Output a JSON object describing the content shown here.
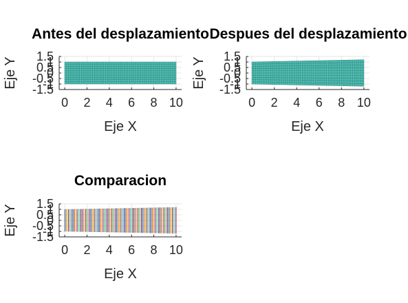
{
  "chart_data": [
    {
      "type": "mesh",
      "title": "Antes del desplazamiento",
      "xlabel": "Eje X",
      "ylabel": "Eje Y",
      "xlim": [
        -0.5,
        10.5
      ],
      "ylim": [
        -1.5,
        1.5
      ],
      "xticks": [
        "0",
        "2",
        "4",
        "6",
        "8",
        "10"
      ],
      "yticks": [
        "-1.5",
        "-1",
        "-0.5",
        "0",
        "0.5",
        "1",
        "1.5"
      ],
      "grid": true,
      "mesh": {
        "x_range": [
          0,
          10
        ],
        "y_bottom": [
          -1,
          -1
        ],
        "y_top": [
          1,
          1
        ],
        "color": "#3bb3a7"
      }
    },
    {
      "type": "mesh",
      "title": "Despues del desplazamiento",
      "xlabel": "Eje X",
      "ylabel": "Eje Y",
      "xlim": [
        -0.5,
        10.5
      ],
      "ylim": [
        -1.5,
        1.5
      ],
      "xticks": [
        "0",
        "2",
        "4",
        "6",
        "8",
        "10"
      ],
      "yticks": [
        "-1.5",
        "-1",
        "-0.5",
        "0",
        "0.5",
        "1",
        "1.5"
      ],
      "grid": true,
      "mesh": {
        "x_range": [
          0,
          10
        ],
        "y_bottom": [
          -1,
          -1.2
        ],
        "y_top": [
          1,
          1.2
        ],
        "color": "#3bb3a7"
      }
    },
    {
      "type": "line",
      "title": "Comparacion",
      "xlabel": "Eje X",
      "ylabel": "Eje Y",
      "xlim": [
        -0.5,
        10.5
      ],
      "ylim": [
        -1.5,
        1.5
      ],
      "xticks": [
        "0",
        "2",
        "4",
        "6",
        "8",
        "10"
      ],
      "yticks": [
        "-1.5",
        "-1",
        "-0.5",
        "0",
        "0.5",
        "1",
        "1.5"
      ],
      "grid": true,
      "lines": {
        "x_range": [
          0,
          10
        ],
        "y_bottom": [
          -1,
          -1.2
        ],
        "y_top": [
          1,
          1.2
        ]
      },
      "colors": [
        "#0072bd",
        "#d95319",
        "#edb120",
        "#7e2f8e",
        "#77ac30",
        "#4dbeee",
        "#a2142f"
      ]
    }
  ]
}
